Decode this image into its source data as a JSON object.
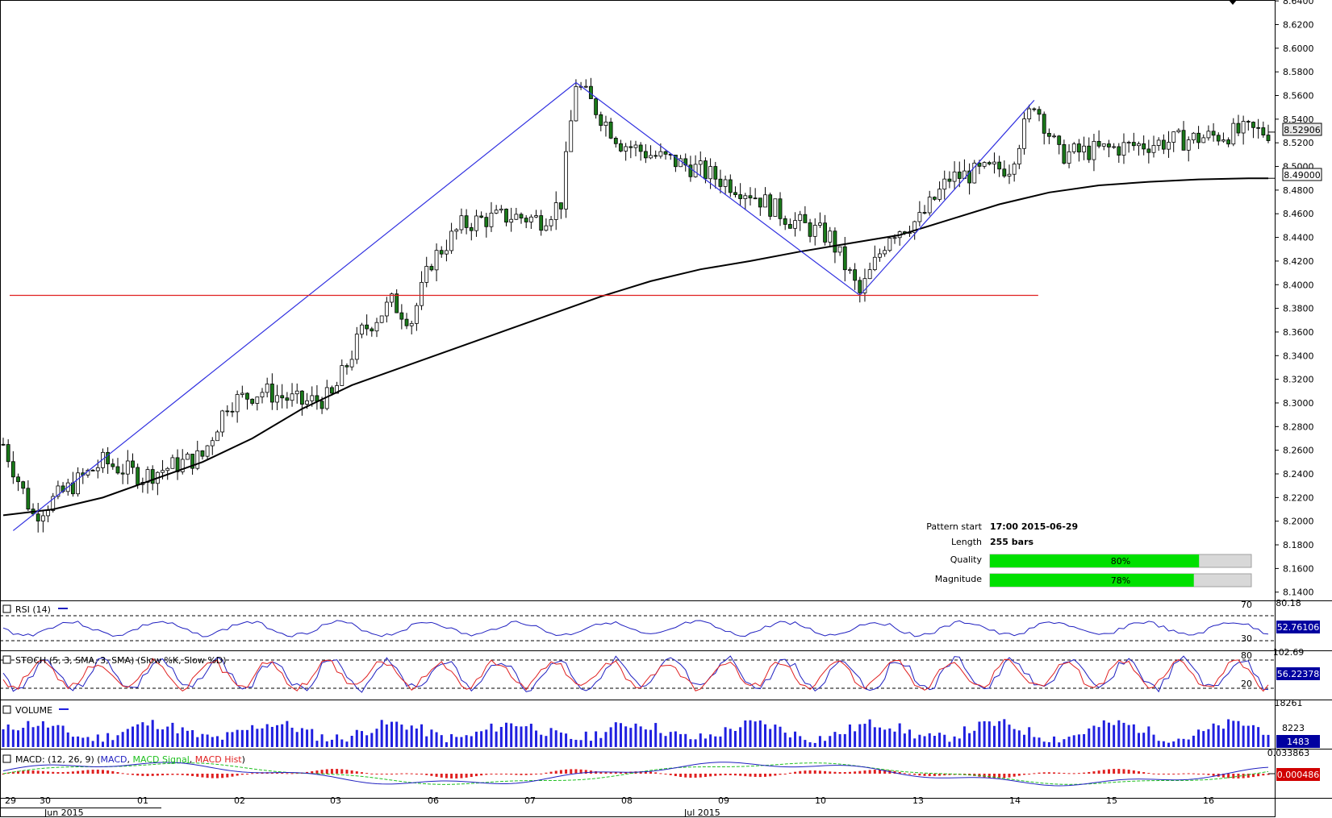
{
  "colors": {
    "pattern_line": "#3030e0",
    "support_line": "#e02020",
    "ma_line": "#000000",
    "rsi_line": "#2020c0",
    "stoch_k": "#2020c0",
    "stoch_d": "#e02020",
    "volume_bar": "#2020e0",
    "macd_line": "#2020c0",
    "macd_signal": "#20c020",
    "macd_hist": "#e02020",
    "quality_fill": "#00e000",
    "bar_bg": "#d8d8d8"
  },
  "info_panel": {
    "pattern_start_label": "Pattern start",
    "pattern_start_value": "17:00 2015-06-29",
    "length_label": "Length",
    "length_value": "255 bars",
    "quality_label": "Quality",
    "quality_value": "80%",
    "quality_fraction": 0.8,
    "magnitude_label": "Magnitude",
    "magnitude_value": "78%",
    "magnitude_fraction": 0.78
  },
  "panels": {
    "rsi": {
      "label": "RSI (14)",
      "top_value": "80.18",
      "level_high": "70",
      "level_low": "30",
      "current": "52.76106"
    },
    "stoch": {
      "label": "STOCH (5, 3, SMA, 3, SMA) (Slow %K, Slow %D)",
      "top_value": "102.69",
      "level_high": "80",
      "level_low": "20",
      "current": "56.22378"
    },
    "volume": {
      "label": "VOLUME",
      "top_value": "18261",
      "mid_value": "8223",
      "current": "1483"
    },
    "macd": {
      "label": "MACD: (12, 26, 9) (MACD, MACD Signal, MACD Hist)",
      "label_parts": [
        "MACD: (12, 26, 9) (",
        "MACD",
        ", ",
        "MACD Signal",
        ", ",
        "MACD Hist",
        ")"
      ],
      "top_value": "0.033863",
      "current": "0.000486"
    }
  },
  "price_axis": {
    "current_price": "8.52906",
    "ma_price": "8.49000"
  },
  "x_axis": {
    "day_labels": [
      "29",
      "30",
      "01",
      "02",
      "03",
      "06",
      "07",
      "08",
      "09",
      "10",
      "13",
      "14",
      "15",
      "16"
    ],
    "month_labels": [
      "Jun 2015",
      "Jul 2015"
    ]
  },
  "chart_data": {
    "type": "candlestick",
    "y_ticks": [
      "8.6400",
      "8.6200",
      "8.6000",
      "8.5800",
      "8.5600",
      "8.5400",
      "8.5200",
      "8.5000",
      "8.4800",
      "8.4600",
      "8.4400",
      "8.4200",
      "8.4000",
      "8.3800",
      "8.3600",
      "8.3400",
      "8.3200",
      "8.3000",
      "8.2800",
      "8.2600",
      "8.2400",
      "8.2200",
      "8.2000",
      "8.1800",
      "8.1600",
      "8.1400"
    ],
    "ylim": [
      8.133,
      8.6435
    ],
    "pattern_points": [
      {
        "bar": 2,
        "price": 8.192
      },
      {
        "bar": 115,
        "price": 8.571
      },
      {
        "bar": 172,
        "price": 8.391
      },
      {
        "bar": 207,
        "price": 8.556
      }
    ],
    "support_level": 8.391,
    "price_path": [
      [
        0,
        8.265
      ],
      [
        6,
        8.205
      ],
      [
        20,
        8.25
      ],
      [
        28,
        8.238
      ],
      [
        35,
        8.248
      ],
      [
        40,
        8.255
      ],
      [
        45,
        8.3
      ],
      [
        52,
        8.31
      ],
      [
        60,
        8.3
      ],
      [
        66,
        8.305
      ],
      [
        72,
        8.36
      ],
      [
        78,
        8.385
      ],
      [
        82,
        8.37
      ],
      [
        86,
        8.42
      ],
      [
        92,
        8.45
      ],
      [
        96,
        8.455
      ],
      [
        102,
        8.458
      ],
      [
        108,
        8.455
      ],
      [
        112,
        8.47
      ],
      [
        115,
        8.571
      ],
      [
        124,
        8.52
      ],
      [
        130,
        8.51
      ],
      [
        138,
        8.5
      ],
      [
        150,
        8.478
      ],
      [
        158,
        8.455
      ],
      [
        166,
        8.44
      ],
      [
        172,
        8.392
      ],
      [
        178,
        8.444
      ],
      [
        184,
        8.455
      ],
      [
        190,
        8.49
      ],
      [
        196,
        8.495
      ],
      [
        202,
        8.5
      ],
      [
        207,
        8.555
      ],
      [
        212,
        8.51
      ],
      [
        222,
        8.515
      ],
      [
        232,
        8.52
      ],
      [
        242,
        8.525
      ],
      [
        250,
        8.53
      ],
      [
        254,
        8.529
      ]
    ],
    "ma_path": [
      [
        0,
        8.205
      ],
      [
        10,
        8.21
      ],
      [
        20,
        8.22
      ],
      [
        30,
        8.235
      ],
      [
        40,
        8.25
      ],
      [
        50,
        8.27
      ],
      [
        60,
        8.295
      ],
      [
        70,
        8.315
      ],
      [
        80,
        8.33
      ],
      [
        90,
        8.345
      ],
      [
        100,
        8.36
      ],
      [
        110,
        8.375
      ],
      [
        120,
        8.39
      ],
      [
        130,
        8.403
      ],
      [
        140,
        8.413
      ],
      [
        150,
        8.42
      ],
      [
        160,
        8.428
      ],
      [
        170,
        8.435
      ],
      [
        180,
        8.442
      ],
      [
        190,
        8.455
      ],
      [
        200,
        8.468
      ],
      [
        210,
        8.478
      ],
      [
        220,
        8.484
      ],
      [
        230,
        8.487
      ],
      [
        240,
        8.489
      ],
      [
        250,
        8.49
      ],
      [
        254,
        8.49
      ]
    ],
    "bars": 255
  }
}
